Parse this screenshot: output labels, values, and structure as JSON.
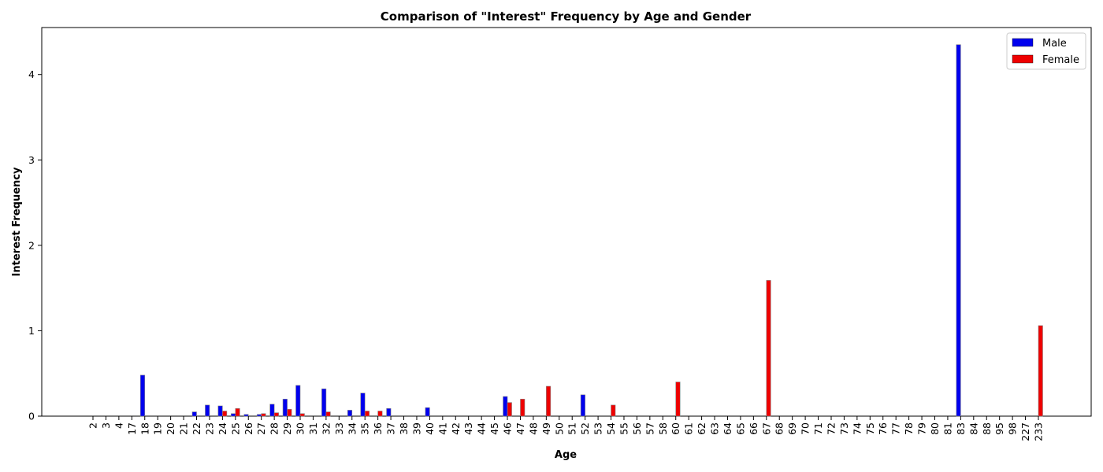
{
  "chart_data": {
    "type": "bar",
    "title": "Comparison of \"Interest\" Frequency by Age and Gender",
    "xlabel": "Age",
    "ylabel": "Interest Frequency",
    "categories": [
      "2",
      "3",
      "4",
      "17",
      "18",
      "19",
      "20",
      "21",
      "22",
      "23",
      "24",
      "25",
      "26",
      "27",
      "28",
      "29",
      "30",
      "31",
      "32",
      "33",
      "34",
      "35",
      "36",
      "37",
      "38",
      "39",
      "40",
      "41",
      "42",
      "43",
      "44",
      "45",
      "46",
      "47",
      "48",
      "49",
      "50",
      "51",
      "52",
      "53",
      "54",
      "55",
      "56",
      "57",
      "58",
      "60",
      "61",
      "62",
      "63",
      "64",
      "65",
      "66",
      "67",
      "68",
      "69",
      "70",
      "71",
      "72",
      "73",
      "74",
      "75",
      "76",
      "77",
      "78",
      "79",
      "80",
      "81",
      "83",
      "84",
      "88",
      "95",
      "98",
      "227",
      "233"
    ],
    "series": [
      {
        "name": "Male",
        "color": "#0000ee",
        "values": [
          0,
          0,
          0,
          0,
          0.48,
          0,
          0,
          0,
          0.05,
          0.13,
          0.12,
          0.03,
          0.02,
          0.02,
          0.14,
          0.2,
          0.36,
          0,
          0.32,
          0,
          0.07,
          0.27,
          0,
          0.09,
          0,
          0,
          0.1,
          0,
          0,
          0,
          0,
          0,
          0.23,
          0,
          0,
          0,
          0,
          0,
          0.25,
          0,
          0,
          0,
          0,
          0,
          0,
          0,
          0,
          0,
          0,
          0,
          0,
          0,
          0,
          0,
          0,
          0,
          0,
          0,
          0,
          0,
          0,
          0,
          0,
          0,
          0,
          0,
          0,
          4.35,
          0,
          0,
          0,
          0,
          0,
          0
        ]
      },
      {
        "name": "Female",
        "color": "#ee0000",
        "values": [
          0,
          0,
          0,
          0,
          0,
          0,
          0,
          0,
          0,
          0,
          0.06,
          0.09,
          0,
          0.03,
          0.04,
          0.08,
          0.03,
          0,
          0.05,
          0,
          0,
          0.06,
          0.06,
          0,
          0,
          0,
          0,
          0,
          0,
          0,
          0,
          0,
          0.16,
          0.2,
          0,
          0.35,
          0,
          0,
          0,
          0,
          0.13,
          0,
          0,
          0,
          0,
          0.4,
          0,
          0,
          0,
          0,
          0,
          0,
          1.59,
          0,
          0,
          0,
          0,
          0,
          0,
          0,
          0,
          0,
          0,
          0,
          0,
          0,
          0,
          0,
          0,
          0,
          0,
          0,
          0,
          1.06
        ]
      }
    ],
    "ylim": [
      0,
      4.55
    ],
    "yticks": [
      0,
      1,
      2,
      3,
      4
    ],
    "legend": "top-right",
    "grid": false
  }
}
